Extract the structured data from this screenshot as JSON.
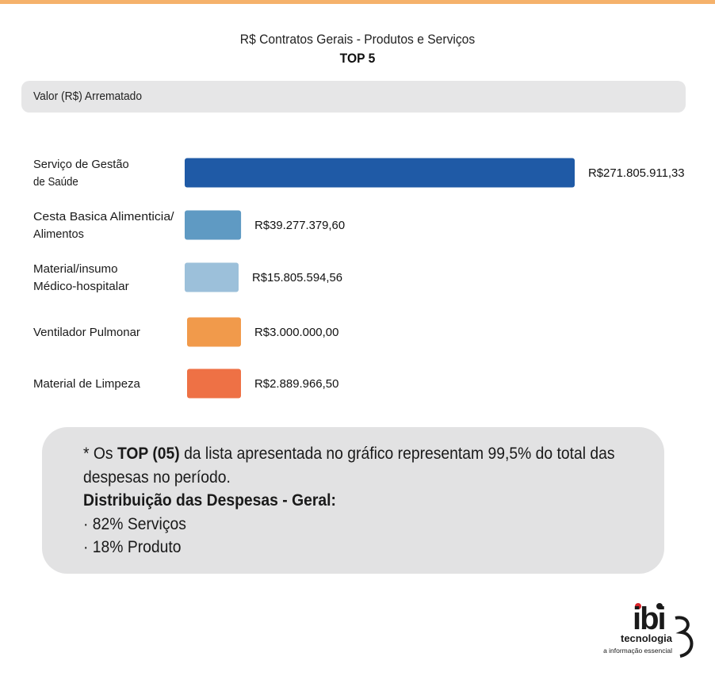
{
  "header": {
    "title": "R$ Contratos Gerais - Produtos e Serviços",
    "subtitle": "TOP 5"
  },
  "section": {
    "label": "Valor (R$) Arrematado"
  },
  "colors": {
    "top_rule": "#f5b26b",
    "bars": [
      "#1f5aa6",
      "#5f9ac3",
      "#9cc0da",
      "#f19a4b",
      "#ee7145"
    ]
  },
  "chart_data": {
    "type": "bar",
    "orientation": "horizontal",
    "title": "R$ Contratos Gerais - Produtos e Serviços",
    "subtitle": "TOP 5",
    "xlabel": "Valor (R$) Arrematado",
    "categories": [
      [
        "Serviço de Gestão",
        "de Saúde"
      ],
      [
        "Cesta Basica Alimenticia/",
        "Alimentos"
      ],
      [
        "Material/insumo",
        "Médico-hospitalar"
      ],
      [
        "Ventilador Pulmonar"
      ],
      [
        "Material de Limpeza"
      ]
    ],
    "values": [
      271805911.33,
      39277379.6,
      15805594.56,
      3000000.0,
      2889966.5
    ],
    "value_labels": [
      "R$271.805.911,33",
      "R$39.277.379,60",
      "R$15.805.594,56",
      "R$3.000.000,00",
      "R$2.889.966,50"
    ],
    "axis_ticks_visible": false,
    "grid": false,
    "legend": "none"
  },
  "note": {
    "line1_prefix": "* Os ",
    "line1_bold": "TOP (05)",
    "line1_rest": " da lista apresentada no gráfico representam 99,5% do total das",
    "line2": "despesas no período.",
    "heading": "Distribuição das Despesas - Geral:",
    "items": [
      "· 82% Serviços",
      "· 18% Produto"
    ]
  },
  "logo": {
    "brand": "ibi",
    "name": "tecnologia",
    "tagline": "a informação essencial"
  }
}
